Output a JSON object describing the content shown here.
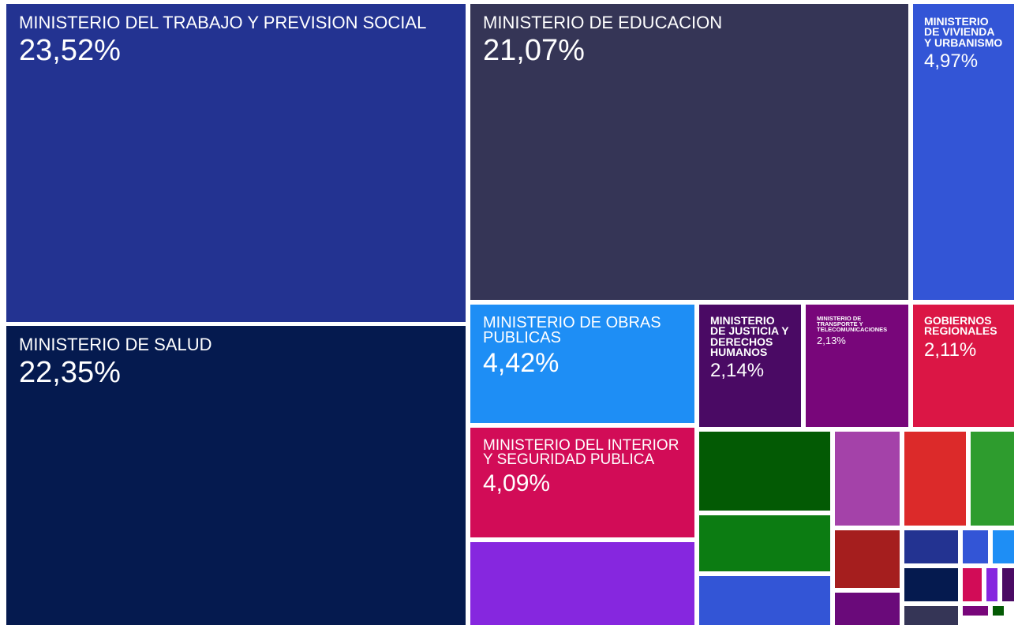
{
  "chart_data": {
    "type": "treemap",
    "categories": [
      "MINISTERIO DEL TRABAJO Y PREVISION SOCIAL",
      "MINISTERIO DE EDUCACION",
      "MINISTERIO DE VIVIENDA Y URBANISMO",
      "MINISTERIO DE SALUD",
      "MINISTERIO DE OBRAS PUBLICAS",
      "MINISTERIO DE JUSTICIA Y DERECHOS HUMANOS",
      "MINISTERIO DE TRANSPORTE Y TELECOMUNICACIONES",
      "GOBIERNOS REGIONALES",
      "MINISTERIO DEL INTERIOR Y SEGURIDAD PUBLICA"
    ],
    "values": [
      23.52,
      21.07,
      4.97,
      22.35,
      4.42,
      2.14,
      2.13,
      2.11,
      4.09
    ],
    "value_labels": [
      "23,52%",
      "21,07%",
      "4,97%",
      "22,35%",
      "4,42%",
      "2,14%",
      "2,13%",
      "2,11%",
      "4,09%"
    ],
    "colors": [
      "#233391",
      "#353556",
      "#3355d6",
      "#051a4f",
      "#1e8ef5",
      "#4a0a64",
      "#78067a",
      "#db1645",
      "#d20c57"
    ]
  }
}
